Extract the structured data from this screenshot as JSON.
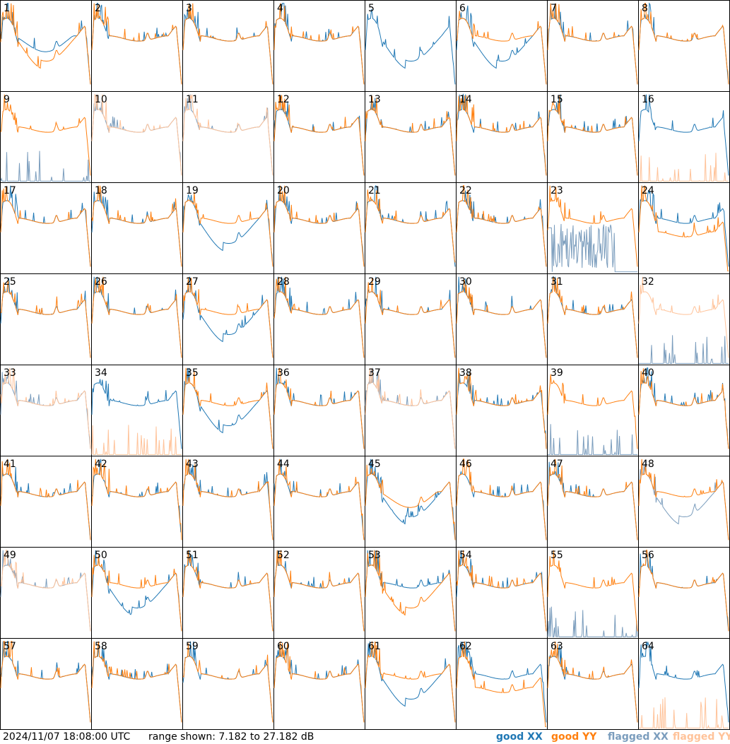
{
  "footer": {
    "timestamp": "2024/11/07 18:08:00 UTC",
    "range_text": "range shown: 7.182 to 27.182 dB"
  },
  "legend": [
    {
      "label": "good XX",
      "color": "#1f77b4"
    },
    {
      "label": "good YY",
      "color": "#ff7f0e"
    },
    {
      "label": "flagged XX",
      "color": "#7b9dbd"
    },
    {
      "label": "flagged YY",
      "color": "#ffc39a"
    }
  ],
  "chart_data": {
    "type": "line",
    "layout": "small-multiples",
    "grid_rows": 8,
    "grid_cols": 8,
    "y_range_db": [
      7.182,
      27.182
    ],
    "grid": false,
    "legend_placement": "bottom-right",
    "series_types": [
      "good XX",
      "good YY",
      "flagged XX",
      "flagged YY"
    ],
    "panels": [
      {
        "id": "1",
        "xx": "shallow",
        "yy": "deep"
      },
      {
        "id": "2",
        "xx": "normal",
        "yy": "normal"
      },
      {
        "id": "3",
        "xx": "normal",
        "yy": "normal"
      },
      {
        "id": "4",
        "xx": "normal",
        "yy": "normal"
      },
      {
        "id": "5",
        "xx": "deep",
        "yy": "none"
      },
      {
        "id": "6",
        "xx": "deep",
        "yy": "normal"
      },
      {
        "id": "7",
        "xx": "normal",
        "yy": "normal"
      },
      {
        "id": "8",
        "xx": "normal",
        "yy": "normal"
      },
      {
        "id": "9",
        "xx": "flagged-low",
        "yy": "normal"
      },
      {
        "id": "10",
        "xx": "flagged",
        "yy": "flagged"
      },
      {
        "id": "11",
        "xx": "flagged",
        "yy": "flagged"
      },
      {
        "id": "12",
        "xx": "normal",
        "yy": "normal"
      },
      {
        "id": "13",
        "xx": "normal",
        "yy": "normal"
      },
      {
        "id": "14",
        "xx": "normal",
        "yy": "normal"
      },
      {
        "id": "15",
        "xx": "normal",
        "yy": "normal"
      },
      {
        "id": "16",
        "xx": "normal",
        "yy": "flagged-low"
      },
      {
        "id": "17",
        "xx": "normal",
        "yy": "normal"
      },
      {
        "id": "18",
        "xx": "normal",
        "yy": "normal"
      },
      {
        "id": "19",
        "xx": "deep",
        "yy": "normal"
      },
      {
        "id": "20",
        "xx": "normal",
        "yy": "normal"
      },
      {
        "id": "21",
        "xx": "normal",
        "yy": "normal"
      },
      {
        "id": "22",
        "xx": "normal",
        "yy": "normal"
      },
      {
        "id": "23",
        "xx": "flagged-noisy",
        "yy": "normal"
      },
      {
        "id": "24",
        "xx": "normal",
        "yy": "low"
      },
      {
        "id": "25",
        "xx": "normal",
        "yy": "normal"
      },
      {
        "id": "26",
        "xx": "normal",
        "yy": "normal"
      },
      {
        "id": "27",
        "xx": "deep",
        "yy": "normal"
      },
      {
        "id": "28",
        "xx": "normal",
        "yy": "normal"
      },
      {
        "id": "29",
        "xx": "normal",
        "yy": "normal"
      },
      {
        "id": "30",
        "xx": "normal",
        "yy": "normal"
      },
      {
        "id": "31",
        "xx": "normal",
        "yy": "normal"
      },
      {
        "id": "32",
        "xx": "flagged-low",
        "yy": "flagged"
      },
      {
        "id": "33",
        "xx": "flagged",
        "yy": "flagged"
      },
      {
        "id": "34",
        "xx": "normal",
        "yy": "flagged-low"
      },
      {
        "id": "35",
        "xx": "deep",
        "yy": "normal"
      },
      {
        "id": "36",
        "xx": "normal",
        "yy": "normal"
      },
      {
        "id": "37",
        "xx": "flagged",
        "yy": "flagged"
      },
      {
        "id": "38",
        "xx": "normal",
        "yy": "normal"
      },
      {
        "id": "39",
        "xx": "flagged-low",
        "yy": "normal"
      },
      {
        "id": "40",
        "xx": "normal",
        "yy": "normal"
      },
      {
        "id": "41",
        "xx": "normal",
        "yy": "normal"
      },
      {
        "id": "42",
        "xx": "normal",
        "yy": "normal"
      },
      {
        "id": "43",
        "xx": "normal",
        "yy": "normal"
      },
      {
        "id": "44",
        "xx": "normal",
        "yy": "normal"
      },
      {
        "id": "45",
        "xx": "deep",
        "yy": "shallow"
      },
      {
        "id": "46",
        "xx": "normal",
        "yy": "normal"
      },
      {
        "id": "47",
        "xx": "normal",
        "yy": "normal"
      },
      {
        "id": "48",
        "xx": "flagged-deep",
        "yy": "normal"
      },
      {
        "id": "49",
        "xx": "flagged",
        "yy": "flagged"
      },
      {
        "id": "50",
        "xx": "deep",
        "yy": "normal"
      },
      {
        "id": "51",
        "xx": "normal",
        "yy": "normal"
      },
      {
        "id": "52",
        "xx": "normal",
        "yy": "normal"
      },
      {
        "id": "53",
        "xx": "normal",
        "yy": "deep"
      },
      {
        "id": "54",
        "xx": "normal",
        "yy": "normal"
      },
      {
        "id": "55",
        "xx": "flagged-low",
        "yy": "normal"
      },
      {
        "id": "56",
        "xx": "normal",
        "yy": "normal"
      },
      {
        "id": "57",
        "xx": "normal",
        "yy": "normal"
      },
      {
        "id": "58",
        "xx": "normal",
        "yy": "normal"
      },
      {
        "id": "59",
        "xx": "normal",
        "yy": "normal"
      },
      {
        "id": "60",
        "xx": "normal",
        "yy": "normal"
      },
      {
        "id": "61",
        "xx": "deep",
        "yy": "normal"
      },
      {
        "id": "62",
        "xx": "normal",
        "yy": "low"
      },
      {
        "id": "63",
        "xx": "normal",
        "yy": "normal"
      },
      {
        "id": "64",
        "xx": "normal",
        "yy": "flagged-low"
      }
    ]
  }
}
